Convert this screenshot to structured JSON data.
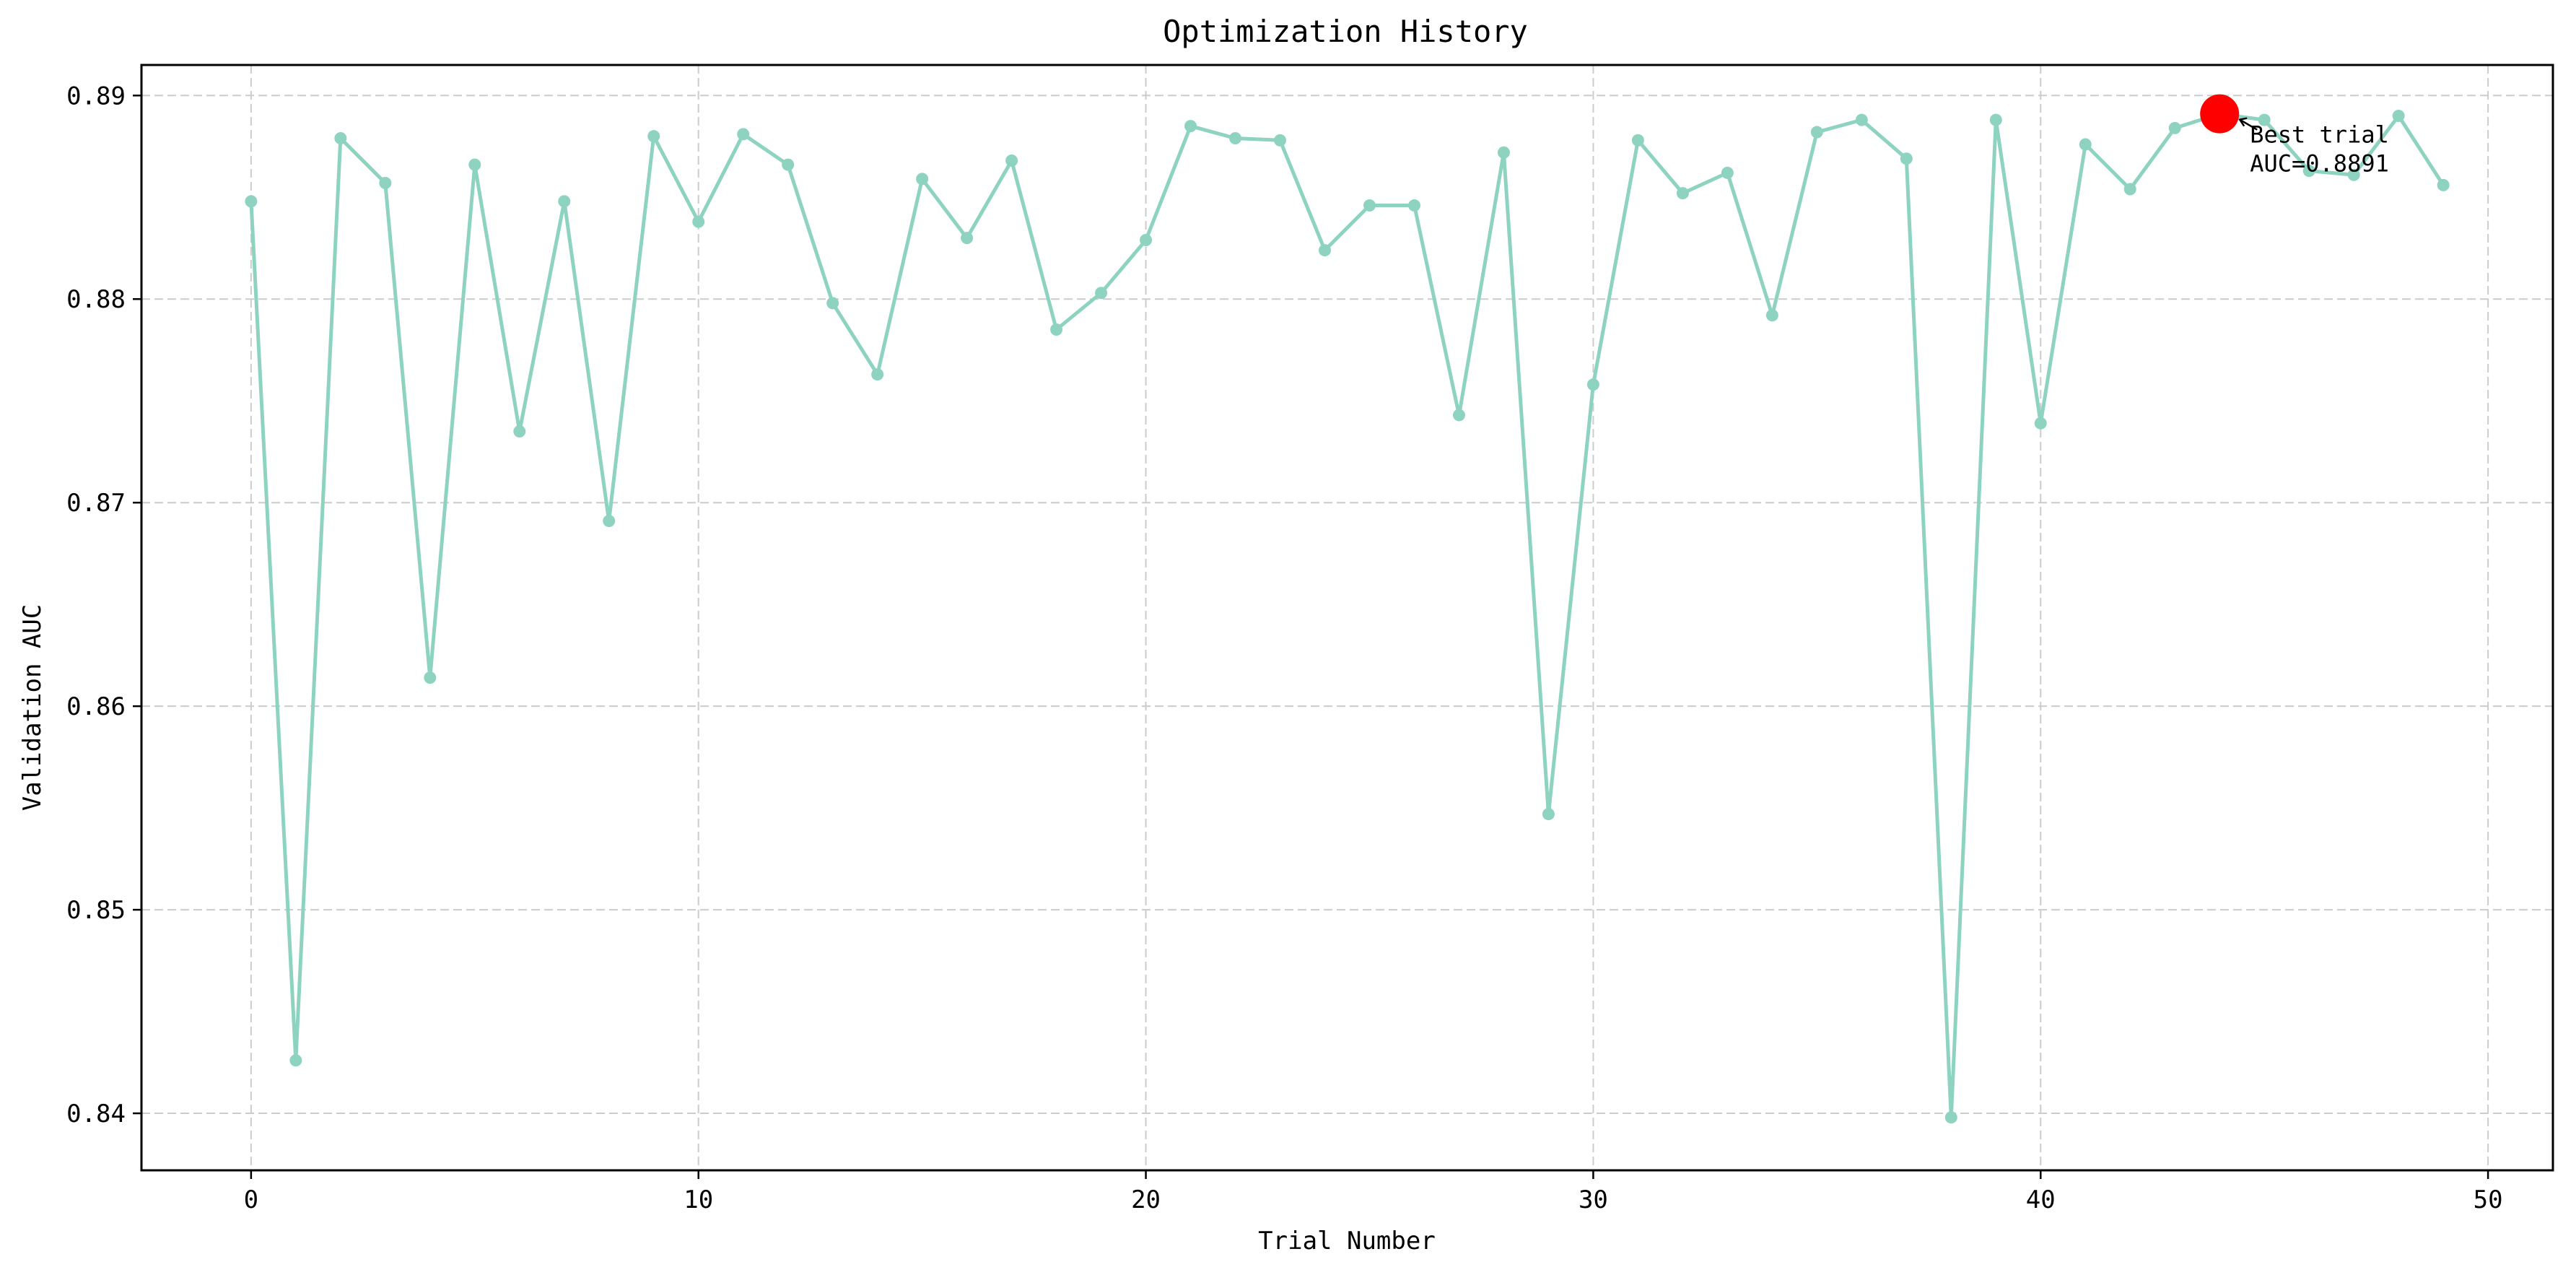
{
  "chart_data": {
    "type": "line",
    "title": "Optimization History",
    "xlabel": "Trial Number",
    "ylabel": "Validation AUC",
    "xlim": [
      -2.45,
      51.45
    ],
    "ylim": [
      0.8372,
      0.8915
    ],
    "x_ticks": [
      0,
      10,
      20,
      30,
      40,
      50
    ],
    "x_tick_labels": [
      "0",
      "10",
      "20",
      "30",
      "40",
      "50"
    ],
    "y_ticks": [
      0.84,
      0.85,
      0.86,
      0.87,
      0.88,
      0.89
    ],
    "y_tick_labels": [
      "0.84",
      "0.85",
      "0.86",
      "0.87",
      "0.88",
      "0.89"
    ],
    "grid": true,
    "series": [
      {
        "color": "#8dd3c0",
        "marker": "circle",
        "x": [
          0,
          1,
          2,
          3,
          4,
          5,
          6,
          7,
          8,
          9,
          10,
          11,
          12,
          13,
          14,
          15,
          16,
          17,
          18,
          19,
          20,
          21,
          22,
          23,
          24,
          25,
          26,
          27,
          28,
          29,
          30,
          31,
          32,
          33,
          34,
          35,
          36,
          37,
          38,
          39,
          40,
          41,
          42,
          43,
          44,
          45,
          46,
          47,
          48,
          49
        ],
        "values": [
          0.8848,
          0.8426,
          0.8879,
          0.8857,
          0.8614,
          0.8866,
          0.8735,
          0.8848,
          0.8691,
          0.888,
          0.8838,
          0.8881,
          0.8866,
          0.8798,
          0.8763,
          0.8859,
          0.883,
          0.8868,
          0.8785,
          0.8803,
          0.8829,
          0.8885,
          0.8879,
          0.8878,
          0.8824,
          0.8846,
          0.8846,
          0.8743,
          0.8872,
          0.8547,
          0.8758,
          0.8878,
          0.8852,
          0.8862,
          0.8792,
          0.8882,
          0.8888,
          0.8869,
          0.8398,
          0.8888,
          0.8739,
          0.8876,
          0.8854,
          0.8884,
          0.8891,
          0.8888,
          0.8863,
          0.8861,
          0.889,
          0.8856
        ]
      }
    ],
    "highlight": {
      "x": 44,
      "y": 0.8891,
      "color": "#ff0000",
      "label_line1": "Best trial",
      "label_line2": "AUC=0.8891"
    }
  }
}
